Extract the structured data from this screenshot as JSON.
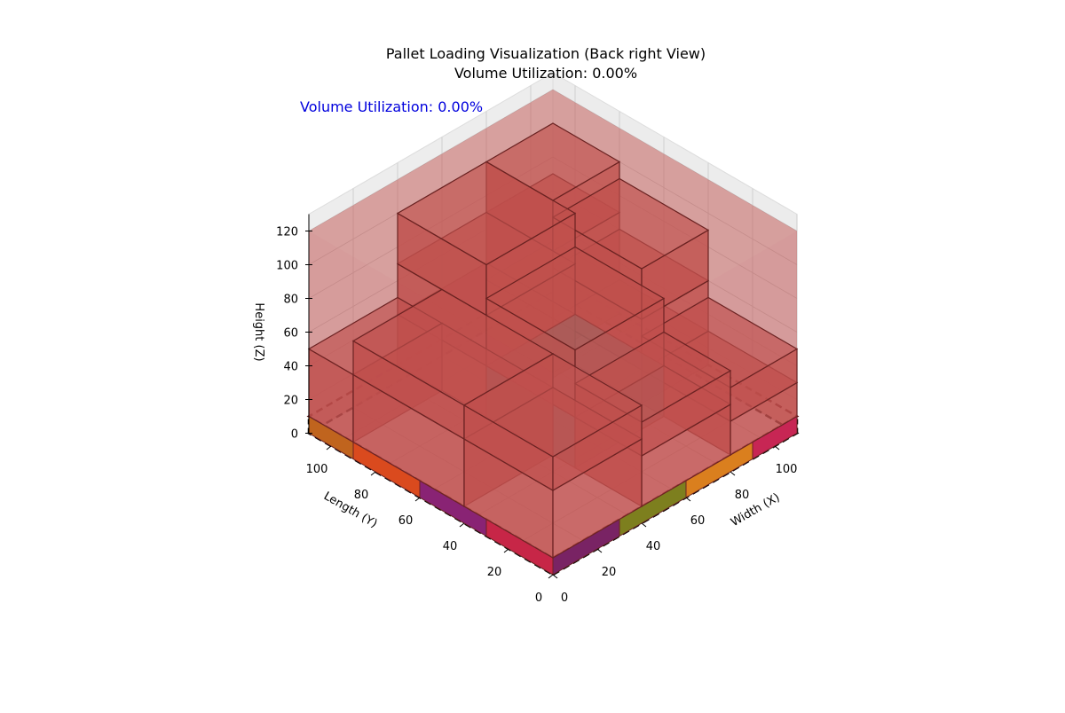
{
  "chart_data": {
    "type": "3d-box",
    "title": "Pallet Loading Visualization (Back right View)",
    "subtitle": "Volume Utilization: 0.00%",
    "annotation": "Volume Utilization: 0.00%",
    "annotation_color": "#0000dd",
    "xlabel": "Width (X)",
    "ylabel": "Length (Y)",
    "zlabel": "Height (Z)",
    "x_ticks": [
      0,
      20,
      40,
      60,
      80,
      100
    ],
    "y_ticks": [
      0,
      20,
      40,
      60,
      80,
      100
    ],
    "z_ticks": [
      0,
      20,
      40,
      60,
      80,
      100,
      120
    ],
    "xlim": [
      0,
      110
    ],
    "ylim": [
      0,
      110
    ],
    "zlim": [
      0,
      130
    ],
    "grid": true,
    "pallet": {
      "x": [
        0,
        110
      ],
      "y": [
        0,
        110
      ],
      "height": 120,
      "color": "#c0504d"
    },
    "floor_outline": {
      "x": [
        0,
        110
      ],
      "y": [
        0,
        110
      ],
      "style": "dashed"
    },
    "base_layer_colors": [
      "#c81e46",
      "#7d1a7d",
      "#e04a14",
      "#c06a14",
      "#6a1a6a",
      "#6e8a14",
      "#e08a14",
      "#c81e56",
      "#5a8a8a"
    ],
    "boxes": [
      {
        "x": [
          0,
          40
        ],
        "y": [
          0,
          40
        ],
        "z": [
          10,
          50
        ],
        "color": "#c0504d"
      },
      {
        "x": [
          0,
          40
        ],
        "y": [
          40,
          90
        ],
        "z": [
          10,
          50
        ],
        "color": "#c0504d"
      },
      {
        "x": [
          0,
          40
        ],
        "y": [
          90,
          110
        ],
        "z": [
          10,
          50
        ],
        "color": "#c0504d"
      },
      {
        "x": [
          40,
          80
        ],
        "y": [
          0,
          30
        ],
        "z": [
          10,
          40
        ],
        "color": "#c0504d"
      },
      {
        "x": [
          40,
          80
        ],
        "y": [
          30,
          70
        ],
        "z": [
          10,
          40
        ],
        "color": "#5a8a8a"
      },
      {
        "x": [
          40,
          80
        ],
        "y": [
          70,
          110
        ],
        "z": [
          10,
          40
        ],
        "color": "#c0504d"
      },
      {
        "x": [
          80,
          110
        ],
        "y": [
          0,
          40
        ],
        "z": [
          10,
          30
        ],
        "color": "#c0504d"
      },
      {
        "x": [
          80,
          110
        ],
        "y": [
          40,
          80
        ],
        "z": [
          10,
          30
        ],
        "color": "#c0504d"
      },
      {
        "x": [
          80,
          110
        ],
        "y": [
          80,
          110
        ],
        "z": [
          10,
          30
        ],
        "color": "#c0504d"
      },
      {
        "x": [
          0,
          40
        ],
        "y": [
          0,
          40
        ],
        "z": [
          50,
          70
        ],
        "color": "#c0504d"
      },
      {
        "x": [
          0,
          40
        ],
        "y": [
          40,
          90
        ],
        "z": [
          50,
          70
        ],
        "color": "#c0504d"
      },
      {
        "x": [
          40,
          80
        ],
        "y": [
          0,
          30
        ],
        "z": [
          40,
          60
        ],
        "color": "#c0504d"
      },
      {
        "x": [
          40,
          80
        ],
        "y": [
          70,
          110
        ],
        "z": [
          40,
          70
        ],
        "color": "#c0504d"
      },
      {
        "x": [
          80,
          110
        ],
        "y": [
          0,
          40
        ],
        "z": [
          30,
          50
        ],
        "color": "#c0504d"
      },
      {
        "x": [
          80,
          110
        ],
        "y": [
          40,
          80
        ],
        "z": [
          30,
          60
        ],
        "color": "#c0504d"
      },
      {
        "x": [
          40,
          80
        ],
        "y": [
          30,
          70
        ],
        "z": [
          40,
          80
        ],
        "color": "#c0504d"
      },
      {
        "x": [
          80,
          110
        ],
        "y": [
          80,
          110
        ],
        "z": [
          30,
          70
        ],
        "color": "#c0504d"
      },
      {
        "x": [
          40,
          80
        ],
        "y": [
          70,
          110
        ],
        "z": [
          70,
          100
        ],
        "color": "#c0504d"
      },
      {
        "x": [
          80,
          110
        ],
        "y": [
          40,
          80
        ],
        "z": [
          60,
          90
        ],
        "color": "#c0504d"
      },
      {
        "x": [
          80,
          110
        ],
        "y": [
          80,
          110
        ],
        "z": [
          70,
          100
        ],
        "color": "#c0504d"
      }
    ]
  }
}
